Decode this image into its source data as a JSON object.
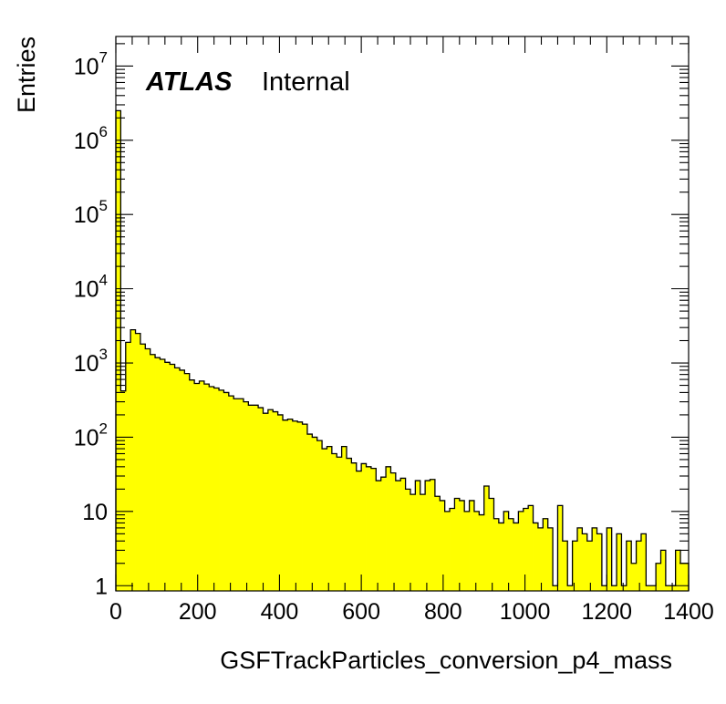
{
  "chart_data": {
    "type": "bar",
    "style": "histogram-step",
    "title": "",
    "xlabel": "GSFTrackParticles_conversion_p4_mass",
    "ylabel": "Entries",
    "x_range": [
      0,
      1400
    ],
    "y_range": [
      0.85,
      25000000
    ],
    "y_scale": "log",
    "bin_width": 12,
    "x_ticks": [
      "0",
      "200",
      "400",
      "600",
      "800",
      "1000",
      "1200",
      "1400"
    ],
    "y_ticks": [
      {
        "value": 1,
        "base": "1",
        "exp": ""
      },
      {
        "value": 10,
        "base": "10",
        "exp": ""
      },
      {
        "value": 100,
        "base": "10",
        "exp": "2"
      },
      {
        "value": 1000,
        "base": "10",
        "exp": "3"
      },
      {
        "value": 10000,
        "base": "10",
        "exp": "4"
      },
      {
        "value": 100000,
        "base": "10",
        "exp": "5"
      },
      {
        "value": 1000000,
        "base": "10",
        "exp": "6"
      },
      {
        "value": 10000000,
        "base": "10",
        "exp": "7"
      }
    ],
    "fill_color": "#ffff00",
    "line_color": "#000000",
    "label": {
      "bold": "ATLAS",
      "text": "Internal",
      "placement": "top-left"
    },
    "values": [
      2500000,
      420,
      1900,
      2800,
      2500,
      1800,
      1550,
      1300,
      1180,
      1120,
      1020,
      960,
      860,
      800,
      720,
      590,
      530,
      570,
      520,
      480,
      460,
      430,
      400,
      360,
      330,
      330,
      300,
      270,
      270,
      250,
      210,
      235,
      220,
      200,
      170,
      175,
      165,
      160,
      150,
      110,
      100,
      90,
      70,
      75,
      60,
      54,
      75,
      52,
      45,
      35,
      44,
      40,
      38,
      26,
      29,
      40,
      33,
      26,
      28,
      20,
      17,
      26,
      17,
      26,
      27,
      16,
      14,
      10,
      11,
      15,
      14,
      10,
      14,
      10,
      9,
      22,
      15,
      8,
      7,
      10,
      8,
      7,
      10,
      11,
      12,
      7,
      6,
      8,
      6,
      1,
      12,
      4,
      1,
      4,
      6,
      5,
      4,
      6,
      5,
      1,
      6,
      1,
      5,
      1,
      4,
      2,
      4,
      5,
      1,
      1,
      2,
      3,
      1,
      1,
      3,
      2,
      2
    ]
  }
}
